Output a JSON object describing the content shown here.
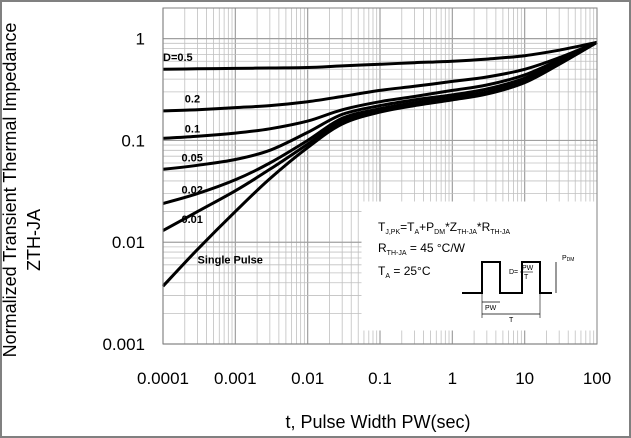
{
  "chart_data": {
    "type": "line",
    "xscale": "log",
    "yscale": "log",
    "xlim": [
      0.0001,
      100
    ],
    "ylim": [
      0.001,
      2
    ],
    "grid": true,
    "xlabel": "t, Pulse Width PW(sec)",
    "ylabel_line1": "Normalized Transient Thermal Impedance",
    "ylabel_line2": "ZTH-JA",
    "x_ticks": [
      {
        "value": 0.0001,
        "label": "0.0001"
      },
      {
        "value": 0.001,
        "label": "0.001"
      },
      {
        "value": 0.01,
        "label": "0.01"
      },
      {
        "value": 0.1,
        "label": "0.1"
      },
      {
        "value": 1,
        "label": "1"
      },
      {
        "value": 10,
        "label": "10"
      },
      {
        "value": 100,
        "label": "100"
      }
    ],
    "y_ticks": [
      {
        "value": 0.001,
        "label": "0.001"
      },
      {
        "value": 0.01,
        "label": "0.01"
      },
      {
        "value": 0.1,
        "label": "0.1"
      },
      {
        "value": 1,
        "label": "1"
      }
    ],
    "series": [
      {
        "name": "D=0.5",
        "label_at": [
          0.0001,
          0.6
        ],
        "x": [
          0.0001,
          0.0003,
          0.001,
          0.003,
          0.01,
          0.03,
          0.1,
          0.3,
          1,
          3,
          10,
          30,
          100
        ],
        "y": [
          0.5,
          0.505,
          0.51,
          0.515,
          0.52,
          0.54,
          0.56,
          0.58,
          0.6,
          0.63,
          0.68,
          0.77,
          0.92
        ]
      },
      {
        "name": "0.2",
        "label_at": [
          0.0002,
          0.235
        ],
        "x": [
          0.0001,
          0.0003,
          0.001,
          0.003,
          0.01,
          0.03,
          0.1,
          0.3,
          1,
          3,
          10,
          30,
          100
        ],
        "y": [
          0.195,
          0.2,
          0.21,
          0.22,
          0.24,
          0.27,
          0.31,
          0.34,
          0.38,
          0.42,
          0.5,
          0.65,
          0.92
        ]
      },
      {
        "name": "0.1",
        "label_at": [
          0.0002,
          0.12
        ],
        "x": [
          0.0001,
          0.0003,
          0.001,
          0.003,
          0.01,
          0.03,
          0.1,
          0.3,
          1,
          3,
          10,
          30,
          100
        ],
        "y": [
          0.105,
          0.11,
          0.118,
          0.13,
          0.155,
          0.2,
          0.24,
          0.27,
          0.31,
          0.35,
          0.44,
          0.62,
          0.92
        ]
      },
      {
        "name": "0.05",
        "label_at": [
          0.00018,
          0.062
        ],
        "x": [
          0.0001,
          0.0003,
          0.001,
          0.003,
          0.01,
          0.03,
          0.1,
          0.3,
          1,
          3,
          10,
          30,
          100
        ],
        "y": [
          0.052,
          0.057,
          0.065,
          0.08,
          0.12,
          0.18,
          0.22,
          0.25,
          0.28,
          0.32,
          0.41,
          0.6,
          0.92
        ]
      },
      {
        "name": "0.02",
        "label_at": [
          0.00018,
          0.03
        ],
        "x": [
          0.0001,
          0.0003,
          0.001,
          0.003,
          0.01,
          0.03,
          0.1,
          0.3,
          1,
          3,
          10,
          30,
          100
        ],
        "y": [
          0.024,
          0.03,
          0.041,
          0.06,
          0.1,
          0.165,
          0.205,
          0.235,
          0.265,
          0.3,
          0.39,
          0.58,
          0.92
        ]
      },
      {
        "name": "0.01",
        "label_at": [
          0.00018,
          0.0155
        ],
        "x": [
          0.0001,
          0.0003,
          0.001,
          0.003,
          0.01,
          0.03,
          0.1,
          0.3,
          1,
          3,
          10,
          30,
          100
        ],
        "y": [
          0.013,
          0.02,
          0.032,
          0.052,
          0.092,
          0.155,
          0.195,
          0.225,
          0.255,
          0.29,
          0.38,
          0.57,
          0.92
        ]
      },
      {
        "name": "Single Pulse",
        "label_at": [
          0.0003,
          0.0062
        ],
        "x": [
          0.0001,
          0.0003,
          0.001,
          0.003,
          0.01,
          0.03,
          0.1,
          0.3,
          1,
          3,
          10,
          30,
          100
        ],
        "y": [
          0.0037,
          0.0085,
          0.02,
          0.042,
          0.085,
          0.145,
          0.19,
          0.22,
          0.25,
          0.285,
          0.37,
          0.56,
          0.92
        ]
      }
    ],
    "annotation": {
      "eq1_parts": [
        "T",
        "J,PK",
        "=T",
        "A",
        "+P",
        "DM",
        "*Z",
        "TH-JA",
        "*R",
        "TH-JA"
      ],
      "eq2_parts": [
        "R",
        "TH-JA",
        " = 45 °C/W"
      ],
      "eq3_parts": [
        "T",
        "A",
        " = 25°C"
      ],
      "duty_label_d": "D=",
      "duty_label_num": "PW",
      "duty_label_den": "T",
      "pdm_label": "P",
      "pdm_sub": "DM",
      "pw_label": "PW",
      "t_label": "T"
    },
    "colors": {
      "curve": "#000000",
      "grid": "#c0c0c0",
      "frame": "#808080"
    }
  }
}
